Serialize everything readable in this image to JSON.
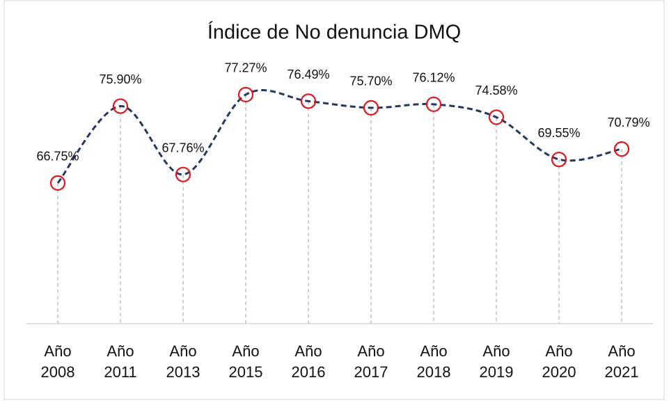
{
  "chart_data": {
    "type": "line",
    "title": "Índice de No denuncia DMQ",
    "categories": [
      "Año 2008",
      "Año 2011",
      "Año 2013",
      "Año 2015",
      "Año 2016",
      "Año 2017",
      "Año 2018",
      "Año 2019",
      "Año 2020",
      "Año 2021"
    ],
    "values": [
      66.75,
      75.9,
      67.76,
      77.27,
      76.49,
      75.7,
      76.12,
      74.58,
      69.55,
      70.79
    ],
    "value_labels": [
      "66.75%",
      "75.90%",
      "67.76%",
      "77.27%",
      "76.49%",
      "75.70%",
      "76.12%",
      "74.58%",
      "69.55%",
      "70.79%"
    ],
    "color": "#1f3864",
    "marker_color": "#e3141b",
    "ylim": [
      50,
      80
    ]
  }
}
